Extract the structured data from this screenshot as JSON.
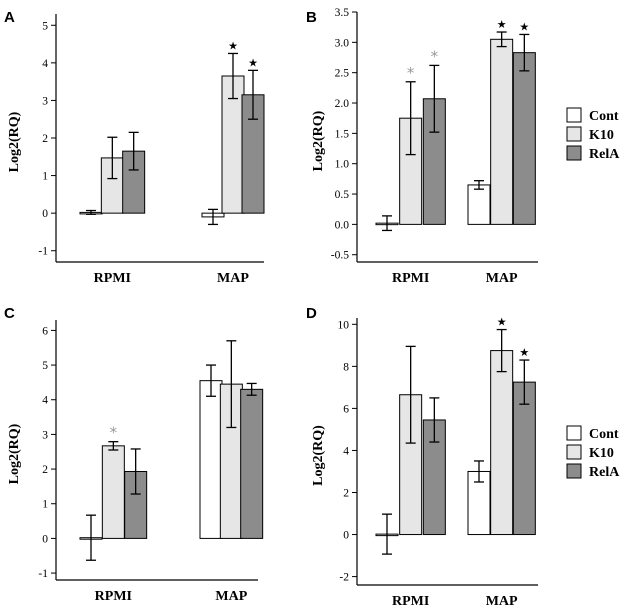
{
  "legend": {
    "entries": [
      {
        "name": "Cont",
        "color": "#ffffff"
      },
      {
        "name": "K10",
        "color": "#e6e6e6"
      },
      {
        "name": "RelA",
        "color": "#8c8c8c"
      }
    ]
  },
  "chart_data": [
    {
      "panel": "A",
      "type": "bar",
      "ylabel": "Log2(RQ)",
      "ylim": [
        -1.3,
        5.3
      ],
      "yticks": [
        -1,
        0,
        1,
        2,
        3,
        4,
        5
      ],
      "ytick_labels": [
        "-1",
        "0",
        "1",
        "2",
        "3",
        "4",
        "5"
      ],
      "categories": [
        "RPMI",
        "MAP"
      ],
      "series": [
        {
          "name": "Cont",
          "values": [
            0.02,
            -0.1
          ],
          "errors": [
            0.05,
            0.2
          ],
          "markers": [
            "",
            ""
          ]
        },
        {
          "name": "K10",
          "values": [
            1.47,
            3.65
          ],
          "errors": [
            0.55,
            0.6
          ],
          "markers": [
            "",
            "★"
          ]
        },
        {
          "name": "RelA",
          "values": [
            1.65,
            3.15
          ],
          "errors": [
            0.5,
            0.65
          ],
          "markers": [
            "",
            "★"
          ]
        }
      ]
    },
    {
      "panel": "B",
      "type": "bar",
      "ylabel": "Log2(RQ)",
      "ylim": [
        -0.62,
        3.5
      ],
      "yticks": [
        -0.5,
        0.0,
        0.5,
        1.0,
        1.5,
        2.0,
        2.5,
        3.0,
        3.5
      ],
      "ytick_labels": [
        "-0.5",
        "0.0",
        "0.5",
        "1.0",
        "1.5",
        "2.0",
        "2.5",
        "3.0",
        "3.5"
      ],
      "categories": [
        "RPMI",
        "MAP"
      ],
      "series": [
        {
          "name": "Cont",
          "values": [
            0.02,
            0.65
          ],
          "errors": [
            0.12,
            0.07
          ],
          "markers": [
            "",
            ""
          ]
        },
        {
          "name": "K10",
          "values": [
            1.75,
            3.05
          ],
          "errors": [
            0.6,
            0.12
          ],
          "markers": [
            "*",
            "★"
          ]
        },
        {
          "name": "RelA",
          "values": [
            2.07,
            2.83
          ],
          "errors": [
            0.55,
            0.3
          ],
          "markers": [
            "*",
            "★"
          ]
        }
      ]
    },
    {
      "panel": "C",
      "type": "bar",
      "ylabel": "Log2(RQ)",
      "ylim": [
        -1.2,
        6.3
      ],
      "yticks": [
        -1,
        0,
        1,
        2,
        3,
        4,
        5,
        6
      ],
      "ytick_labels": [
        "-1",
        "0",
        "1",
        "2",
        "3",
        "4",
        "5",
        "6"
      ],
      "categories": [
        "RPMI",
        "MAP"
      ],
      "series": [
        {
          "name": "Cont",
          "values": [
            0.02,
            4.55
          ],
          "errors": [
            0.65,
            0.45
          ],
          "markers": [
            "",
            ""
          ]
        },
        {
          "name": "K10",
          "values": [
            2.67,
            4.45
          ],
          "errors": [
            0.12,
            1.25
          ],
          "markers": [
            "*",
            ""
          ]
        },
        {
          "name": "RelA",
          "values": [
            1.93,
            4.3
          ],
          "errors": [
            0.65,
            0.17
          ],
          "markers": [
            "",
            ""
          ]
        }
      ]
    },
    {
      "panel": "D",
      "type": "bar",
      "ylabel": "Log2(RQ)",
      "ylim": [
        -2.4,
        10.3
      ],
      "yticks": [
        -2,
        0,
        2,
        4,
        6,
        8,
        10
      ],
      "ytick_labels": [
        "-2",
        "0",
        "2",
        "4",
        "6",
        "8",
        "10"
      ],
      "categories": [
        "RPMI",
        "MAP"
      ],
      "series": [
        {
          "name": "Cont",
          "values": [
            0.02,
            3.0
          ],
          "errors": [
            0.95,
            0.5
          ],
          "markers": [
            "",
            ""
          ]
        },
        {
          "name": "K10",
          "values": [
            6.65,
            8.75
          ],
          "errors": [
            2.3,
            1.0
          ],
          "markers": [
            "",
            "★"
          ]
        },
        {
          "name": "RelA",
          "values": [
            5.45,
            7.25
          ],
          "errors": [
            1.05,
            1.05
          ],
          "markers": [
            "",
            "★"
          ]
        }
      ]
    }
  ]
}
